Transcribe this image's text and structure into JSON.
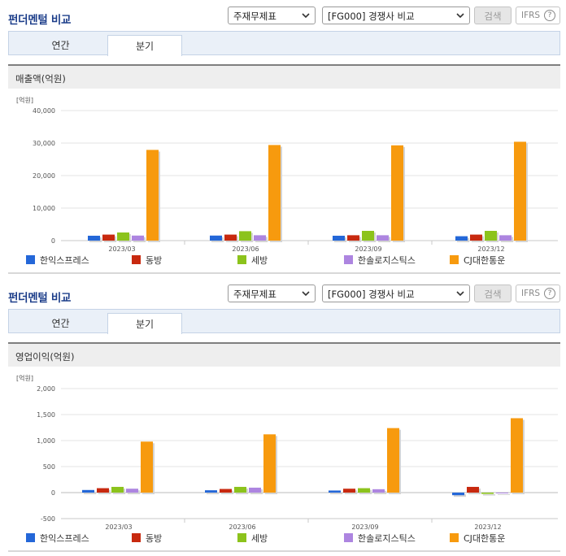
{
  "colors": {
    "series": [
      "#2467d8",
      "#c8290f",
      "#8cc31c",
      "#ad85e0",
      "#f79a0e"
    ],
    "title": "#1d3e8a"
  },
  "sections": [
    {
      "title": "펀더멘털 비교",
      "select1": "주재무제표",
      "select2": "[FG000] 경쟁사 비교",
      "search_label": "검색",
      "ifrs_label": "IFRS",
      "ifrs_help": "?",
      "tabs": [
        {
          "label": "연간"
        },
        {
          "label": "분기"
        }
      ],
      "active_tab": "분기",
      "chart_label": "매출액(억원)"
    },
    {
      "title": "펀더멘털 비교",
      "select1": "주재무제표",
      "select2": "[FG000] 경쟁사 비교",
      "search_label": "검색",
      "ifrs_label": "IFRS",
      "ifrs_help": "?",
      "tabs": [
        {
          "label": "연간"
        },
        {
          "label": "분기"
        }
      ],
      "active_tab": "분기",
      "chart_label": "영업이익(억원)"
    }
  ],
  "legend": [
    "한익스프레스",
    "동방",
    "세방",
    "한솔로지스틱스",
    "CJ대한통운"
  ],
  "chart_data": [
    {
      "type": "bar",
      "unit": "[억원]",
      "categories": [
        "2023/03",
        "2023/06",
        "2023/09",
        "2023/12"
      ],
      "ylim": [
        0,
        40000
      ],
      "yticks": [
        0,
        10000,
        20000,
        30000,
        40000
      ],
      "ytick_labels": [
        "0",
        "10,000",
        "20,000",
        "30,000",
        "40,000"
      ],
      "series": [
        {
          "name": "한익스프레스",
          "values": [
            1500,
            1550,
            1500,
            1350
          ]
        },
        {
          "name": "동방",
          "values": [
            1850,
            1850,
            1650,
            1850
          ]
        },
        {
          "name": "세방",
          "values": [
            2500,
            2900,
            3000,
            3000
          ]
        },
        {
          "name": "한솔로지스틱스",
          "values": [
            1550,
            1650,
            1650,
            1650
          ]
        },
        {
          "name": "CJ대한통운",
          "values": [
            27900,
            29400,
            29300,
            30400
          ]
        }
      ]
    },
    {
      "type": "bar",
      "unit": "[억원]",
      "categories": [
        "2023/03",
        "2023/06",
        "2023/09",
        "2023/12"
      ],
      "ylim": [
        -500,
        2000
      ],
      "yticks": [
        -500,
        0,
        500,
        1000,
        1500,
        2000
      ],
      "ytick_labels": [
        "-500",
        "0",
        "500",
        "1,000",
        "1,500",
        "2,000"
      ],
      "series": [
        {
          "name": "한익스프레스",
          "values": [
            50,
            45,
            40,
            -50
          ]
        },
        {
          "name": "동방",
          "values": [
            85,
            70,
            75,
            110
          ]
        },
        {
          "name": "세방",
          "values": [
            110,
            110,
            85,
            -25
          ]
        },
        {
          "name": "한솔로지스틱스",
          "values": [
            75,
            95,
            65,
            -15
          ]
        },
        {
          "name": "CJ대한통운",
          "values": [
            980,
            1120,
            1240,
            1430
          ]
        }
      ]
    }
  ]
}
